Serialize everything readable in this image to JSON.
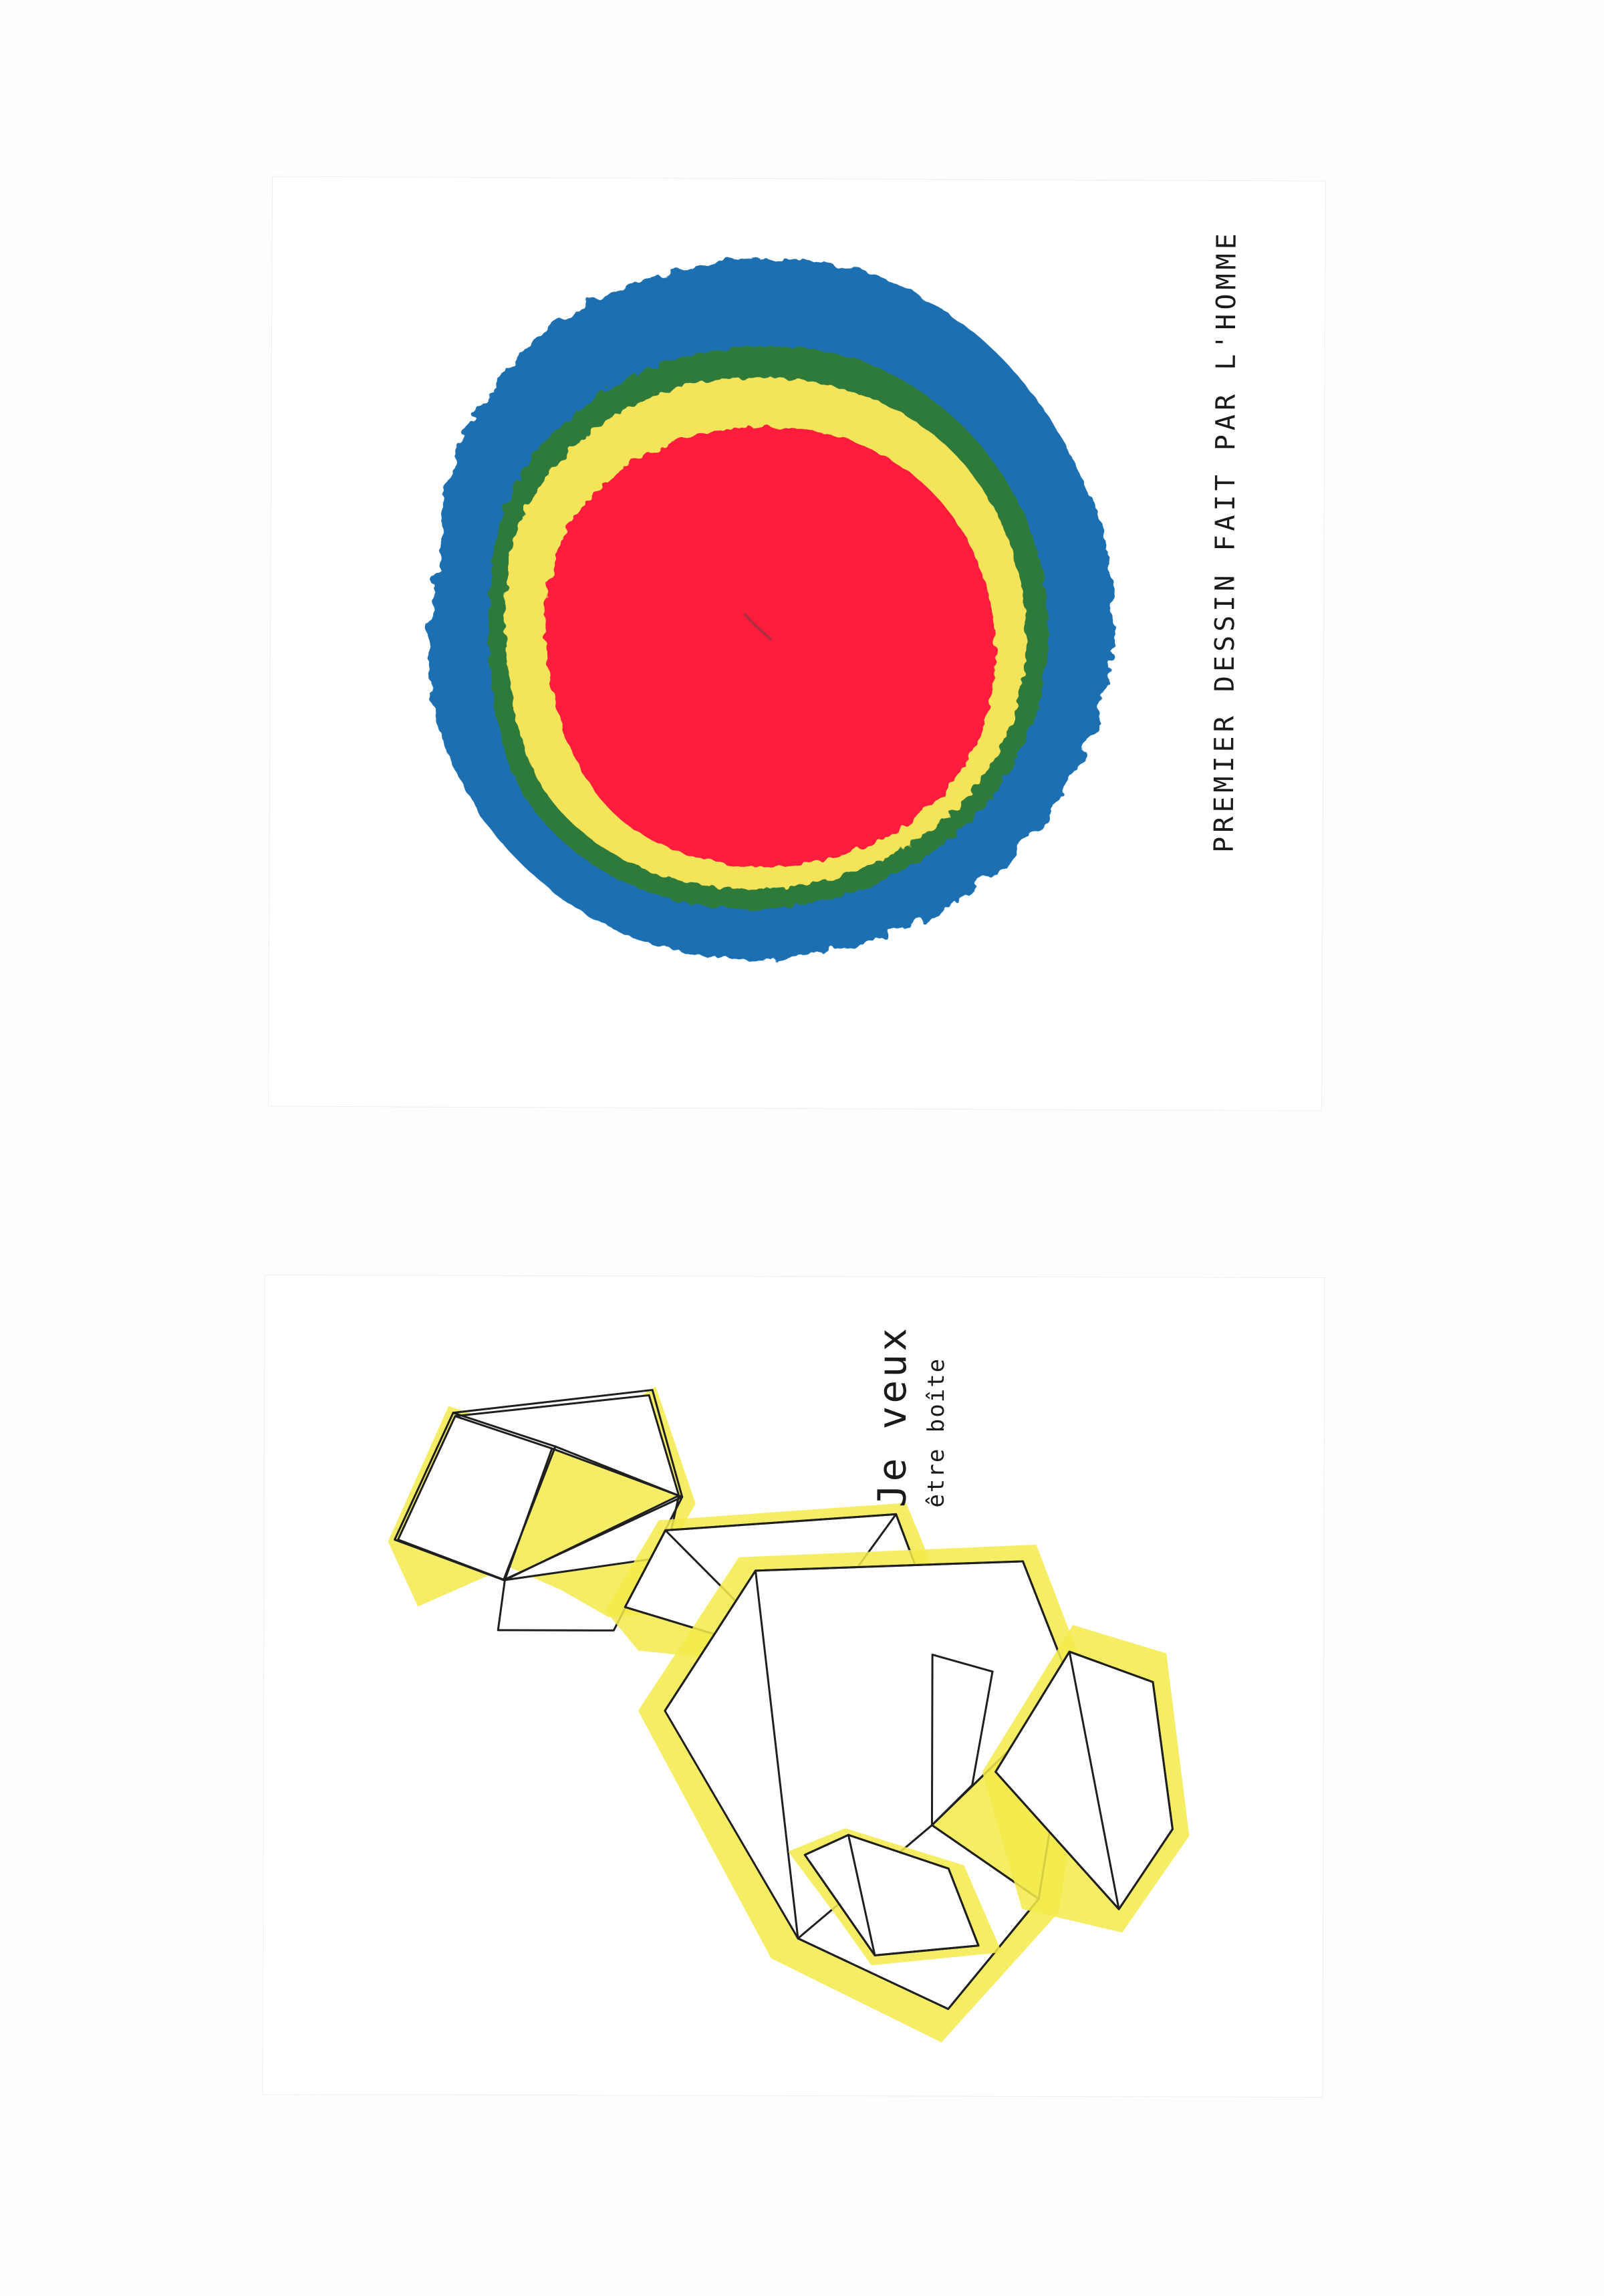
{
  "artwork": {
    "top_caption": "PREMIER DESSIN FAIT PAR L'HOMME",
    "bottom_caption_line1": "Je veux",
    "bottom_caption_line2": "être boîte"
  },
  "colors": {
    "background": "#fdfcfe",
    "blue": "#1f6fb2",
    "green": "#2f7a3b",
    "yellow": "#f4e45a",
    "red": "#ff1f3d",
    "cube_yellow": "#f3ea4b",
    "ink": "#1f1f1f"
  }
}
